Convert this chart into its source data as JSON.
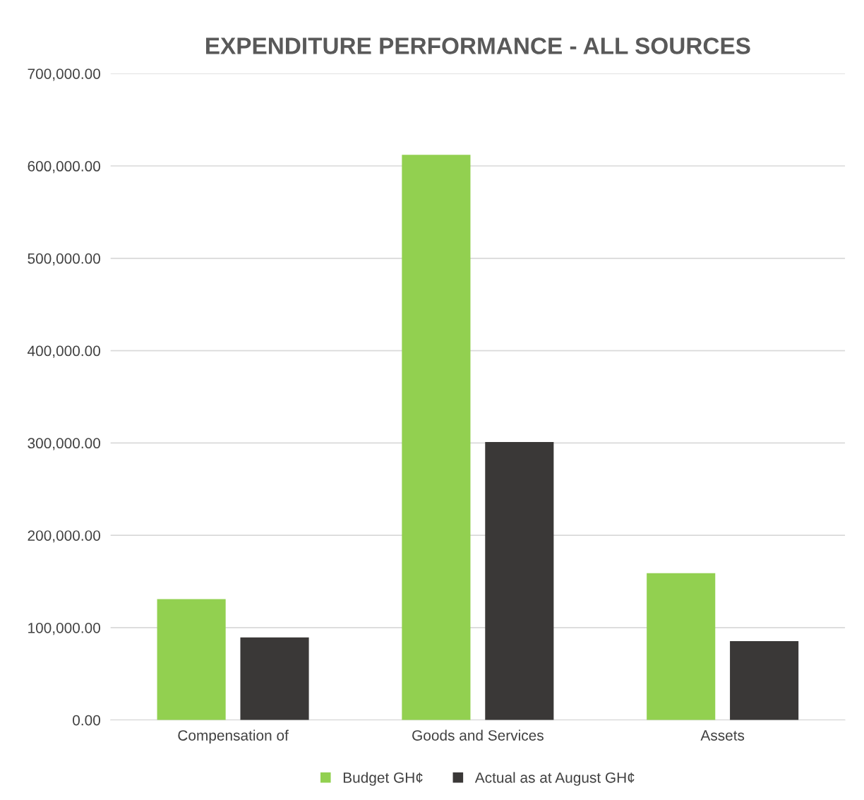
{
  "chart_data": {
    "type": "bar",
    "title": "EXPENDITURE PERFORMANCE - ALL SOURCES",
    "categories": [
      "Compensation of",
      "Goods and Services",
      "Assets"
    ],
    "series": [
      {
        "name": "Budget GH¢",
        "color": "#92d050",
        "values": [
          131000,
          612000,
          159000
        ]
      },
      {
        "name": "Actual as at August GH¢",
        "color": "#3a3837",
        "values": [
          89500,
          301000,
          85500
        ]
      }
    ],
    "ylim": [
      0,
      700000
    ],
    "yticks": [
      {
        "value": 0,
        "label": "0.00"
      },
      {
        "value": 100000,
        "label": "100,000.00"
      },
      {
        "value": 200000,
        "label": "200,000.00"
      },
      {
        "value": 300000,
        "label": "300,000.00"
      },
      {
        "value": 400000,
        "label": "400,000.00"
      },
      {
        "value": 500000,
        "label": "500,000.00"
      },
      {
        "value": 600000,
        "label": "600,000.00"
      },
      {
        "value": 700000,
        "label": "700,000.00"
      }
    ],
    "grid": "y",
    "legend": "bottom"
  }
}
